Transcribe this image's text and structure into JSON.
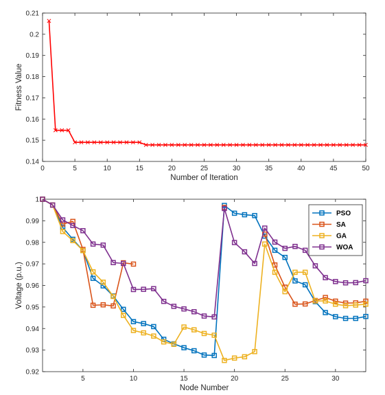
{
  "chart_data": [
    {
      "type": "line",
      "xlabel": "Number of Iteration",
      "ylabel": "Fitness Value",
      "xlim": [
        0,
        50
      ],
      "ylim": [
        0.14,
        0.21
      ],
      "xticks": [
        0,
        5,
        10,
        15,
        20,
        25,
        30,
        35,
        40,
        45,
        50
      ],
      "yticks": [
        0.14,
        0.15,
        0.16,
        0.17,
        0.18,
        0.19,
        0.2,
        0.21
      ],
      "grid": false,
      "series": [
        {
          "color": "#ff0000",
          "marker": "x",
          "x": [
            1,
            2,
            3,
            4,
            5,
            6,
            7,
            8,
            9,
            10,
            11,
            12,
            13,
            14,
            15,
            16,
            17,
            18,
            19,
            20,
            21,
            22,
            23,
            24,
            25,
            26,
            27,
            28,
            29,
            30,
            31,
            32,
            33,
            34,
            35,
            36,
            37,
            38,
            39,
            40,
            41,
            42,
            43,
            44,
            45,
            46,
            47,
            48,
            49,
            50
          ],
          "values": [
            0.2063,
            0.1547,
            0.1547,
            0.1547,
            0.149,
            0.149,
            0.149,
            0.149,
            0.149,
            0.149,
            0.149,
            0.149,
            0.149,
            0.149,
            0.149,
            0.1478,
            0.1478,
            0.1478,
            0.1478,
            0.1478,
            0.1478,
            0.1478,
            0.1478,
            0.1478,
            0.1478,
            0.1478,
            0.1478,
            0.1478,
            0.1478,
            0.1478,
            0.1478,
            0.1478,
            0.1478,
            0.1478,
            0.1478,
            0.1478,
            0.1478,
            0.1478,
            0.1478,
            0.1478,
            0.1478,
            0.1478,
            0.1478,
            0.1478,
            0.1478,
            0.1478,
            0.1478,
            0.1478,
            0.1478,
            0.1478
          ]
        }
      ]
    },
    {
      "type": "line",
      "xlabel": "Node Number",
      "ylabel": "Voltage (p.u.)",
      "xlim": [
        1,
        33
      ],
      "ylim": [
        0.92,
        1.0
      ],
      "xticks": [
        5,
        10,
        15,
        20,
        25,
        30
      ],
      "yticks": [
        0.92,
        0.93,
        0.94,
        0.95,
        0.96,
        0.97,
        0.98,
        0.99,
        1.0
      ],
      "ytick_labels": [
        "0.92",
        "0.93",
        "0.94",
        "0.95",
        "0.96",
        "0.97",
        "0.98",
        "0.99",
        "1"
      ],
      "grid": false,
      "legend": "top-right",
      "x": [
        1,
        2,
        3,
        4,
        5,
        6,
        7,
        8,
        9,
        10,
        11,
        12,
        13,
        14,
        15,
        16,
        17,
        18,
        19,
        20,
        21,
        22,
        23,
        24,
        25,
        26,
        27,
        28,
        29,
        30,
        31,
        32,
        33
      ],
      "series": [
        {
          "name": "PSO",
          "color": "#0072bd",
          "values": [
            1.0,
            0.9973,
            0.9869,
            0.9814,
            0.9762,
            0.9633,
            0.9598,
            0.9551,
            0.9489,
            0.9432,
            0.9423,
            0.9409,
            0.935,
            0.9329,
            0.9311,
            0.9297,
            0.9277,
            0.9275,
            0.9971,
            0.9935,
            0.9928,
            0.9924,
            0.9829,
            0.9763,
            0.973,
            0.9621,
            0.9603,
            0.9525,
            0.9474,
            0.9455,
            0.9447,
            0.9447,
            0.9456
          ]
        },
        {
          "name": "SA",
          "color": "#d95319",
          "values": [
            1.0,
            0.9973,
            0.9885,
            0.9897,
            0.9767,
            0.9508,
            0.951,
            0.9505,
            0.9705,
            0.9699,
            null,
            null,
            null,
            null,
            null,
            null,
            null,
            null,
            0.9962,
            null,
            null,
            null,
            0.9838,
            0.9695,
            0.9592,
            0.9513,
            0.9514,
            0.953,
            0.9544,
            0.9527,
            0.9518,
            0.9519,
            0.9527
          ]
        },
        {
          "name": "GA",
          "color": "#edb120",
          "values": [
            1.0,
            0.9973,
            0.985,
            0.9808,
            0.9762,
            0.9663,
            0.9615,
            0.9549,
            0.9461,
            0.9391,
            0.938,
            0.9365,
            0.9338,
            0.9327,
            0.9407,
            0.9394,
            0.9377,
            0.9369,
            0.9252,
            0.9263,
            0.9269,
            0.9293,
            0.9792,
            0.9661,
            0.9571,
            0.9661,
            0.9661,
            0.9528,
            0.9528,
            0.9513,
            0.9506,
            0.9509,
            0.9513
          ]
        },
        {
          "name": "WOA",
          "color": "#7e2f8e",
          "values": [
            1.0,
            0.9973,
            0.9904,
            0.9878,
            0.9854,
            0.9792,
            0.9787,
            0.9706,
            0.9702,
            0.9581,
            0.9582,
            0.9585,
            0.9526,
            0.9503,
            0.9491,
            0.9478,
            0.9458,
            0.9454,
            0.9957,
            0.9799,
            0.9756,
            0.9702,
            0.9866,
            0.9801,
            0.9772,
            0.9781,
            0.9763,
            0.9691,
            0.9636,
            0.9618,
            0.9612,
            0.9613,
            0.9622
          ]
        }
      ]
    }
  ]
}
